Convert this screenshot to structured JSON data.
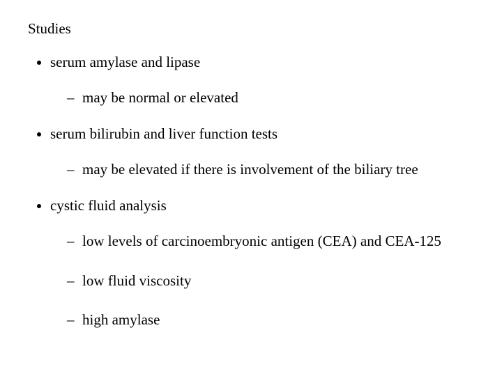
{
  "title": "Studies",
  "items": [
    {
      "label": "serum amylase and lipase",
      "sub": [
        "may be normal or elevated"
      ]
    },
    {
      "label": "serum bilirubin and liver function tests",
      "sub": [
        "may be elevated if there is involvement of the biliary tree"
      ]
    },
    {
      "label": "cystic fluid analysis",
      "sub": [
        "low levels of carcinoembryonic antigen (CEA) and CEA-125",
        "low fluid viscosity",
        "high amylase"
      ]
    }
  ],
  "colors": {
    "background": "#ffffff",
    "text": "#000000"
  },
  "font": {
    "family": "Times New Roman",
    "size_pt": 21
  }
}
